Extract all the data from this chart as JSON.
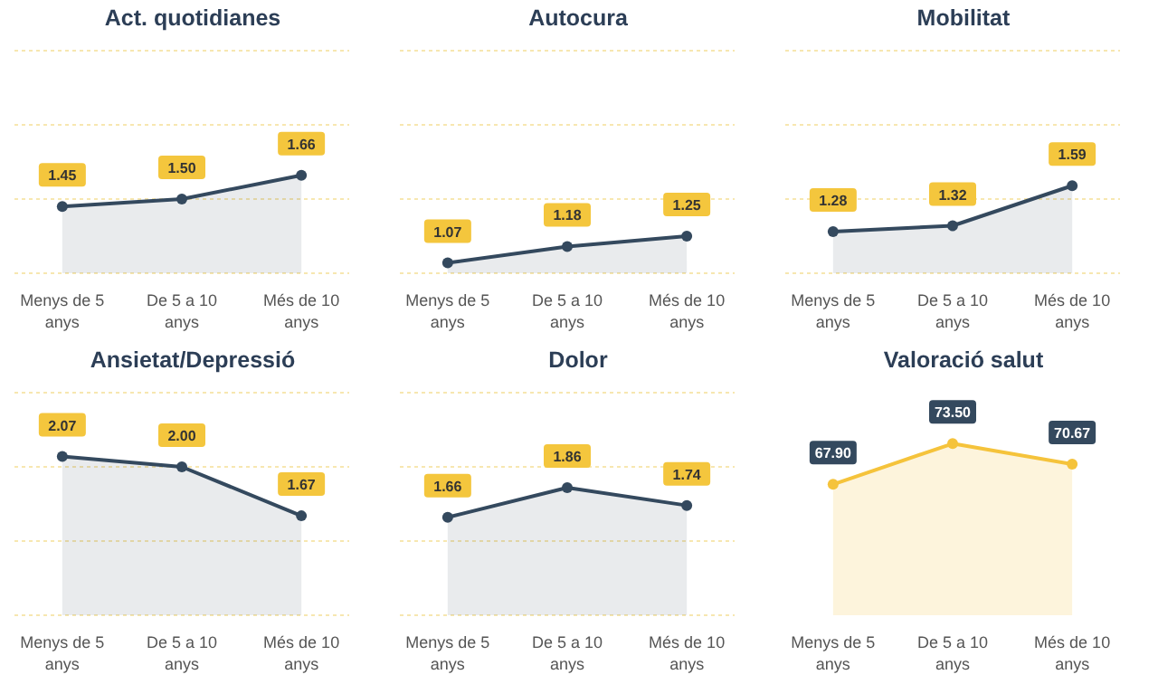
{
  "chart_data": [
    {
      "type": "area",
      "title": "Act. quotidianes",
      "categories": [
        "Menys de 5 anys",
        "De 5 a 10 anys",
        "Més de 10 anys"
      ],
      "series": [
        {
          "color": "#34495e",
          "values": [
            1.45,
            1.5,
            1.66
          ],
          "value_labels": [
            "1.45",
            "1.50",
            "1.66"
          ]
        }
      ],
      "ylim": [
        1,
        2.5
      ],
      "yticks": [
        {
          "value": 1,
          "label": null
        },
        {
          "value": 1.5,
          "label": null
        },
        {
          "value": 2,
          "label": null
        },
        {
          "value": 2.5,
          "label": null
        }
      ],
      "tick_labels": "x",
      "grid": "y",
      "marker": "circle"
    },
    {
      "type": "area",
      "title": "Autocura",
      "categories": [
        "Menys de 5 anys",
        "De 5 a 10 anys",
        "Més de 10 anys"
      ],
      "series": [
        {
          "color": "#34495e",
          "values": [
            1.07,
            1.18,
            1.25
          ],
          "value_labels": [
            "1.07",
            "1.18",
            "1.25"
          ]
        }
      ],
      "ylim": [
        1,
        2.5
      ],
      "yticks": [
        {
          "value": 1,
          "label": null
        },
        {
          "value": 1.5,
          "label": null
        },
        {
          "value": 2,
          "label": null
        },
        {
          "value": 2.5,
          "label": null
        }
      ],
      "tick_labels": "x",
      "grid": "y",
      "marker": "circle"
    },
    {
      "type": "area",
      "title": "Mobilitat",
      "categories": [
        "Menys de 5 anys",
        "De 5 a 10 anys",
        "Més de 10 anys"
      ],
      "series": [
        {
          "color": "#34495e",
          "values": [
            1.28,
            1.32,
            1.59
          ],
          "value_labels": [
            "1.28",
            "1.32",
            "1.59"
          ]
        }
      ],
      "ylim": [
        1,
        2.5
      ],
      "yticks": [
        {
          "value": 1,
          "label": null
        },
        {
          "value": 1.5,
          "label": null
        },
        {
          "value": 2,
          "label": null
        },
        {
          "value": 2.5,
          "label": null
        }
      ],
      "tick_labels": "x",
      "grid": "y",
      "marker": "circle"
    },
    {
      "type": "area",
      "title": "Ansietat/Depressió",
      "categories": [
        "Menys de 5 anys",
        "De 5 a 10 anys",
        "Més de 10 anys"
      ],
      "series": [
        {
          "color": "#34495e",
          "values": [
            2.07,
            2.0,
            1.67
          ],
          "value_labels": [
            "2.07",
            "2.00",
            "1.67"
          ]
        }
      ],
      "ylim": [
        1,
        2.5
      ],
      "yticks": [
        {
          "value": 1,
          "label": null
        },
        {
          "value": 1.5,
          "label": null
        },
        {
          "value": 2,
          "label": null
        },
        {
          "value": 2.5,
          "label": null
        }
      ],
      "tick_labels": "x",
      "grid": "y",
      "marker": "circle"
    },
    {
      "type": "area",
      "title": "Dolor",
      "categories": [
        "Menys de 5 anys",
        "De 5 a 10 anys",
        "Més de 10 anys"
      ],
      "series": [
        {
          "color": "#34495e",
          "values": [
            1.66,
            1.86,
            1.74
          ],
          "value_labels": [
            "1.66",
            "1.86",
            "1.74"
          ]
        }
      ],
      "ylim": [
        1,
        2.5
      ],
      "yticks": [
        {
          "value": 1,
          "label": null
        },
        {
          "value": 1.5,
          "label": null
        },
        {
          "value": 2,
          "label": null
        },
        {
          "value": 2.5,
          "label": null
        }
      ],
      "tick_labels": "x",
      "grid": "y",
      "marker": "circle"
    },
    {
      "type": "area",
      "title": "Valoració salut",
      "categories": [
        "Menys de 5 anys",
        "De 5 a 10 anys",
        "Més de 10 anys"
      ],
      "series": [
        {
          "color": "#f5c33b",
          "values": [
            67.9,
            73.5,
            70.67
          ],
          "value_labels": [
            "67.90",
            "73.50",
            "70.67"
          ]
        }
      ],
      "tick_labels": "x",
      "marker": "circle"
    }
  ]
}
